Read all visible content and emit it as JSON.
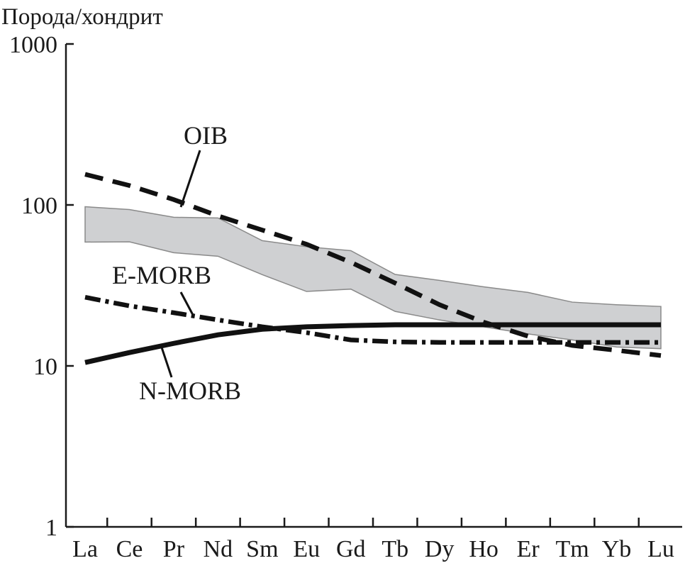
{
  "chart_data": {
    "type": "line",
    "ylabel": "Порода/хондрит",
    "yscale": "log",
    "ylim": [
      1,
      1000
    ],
    "yticks": [
      "1",
      "10",
      "100",
      "1000"
    ],
    "ytick_values": [
      1,
      10,
      100,
      1000
    ],
    "categories": [
      "La",
      "Ce",
      "Pr",
      "Nd",
      "Sm",
      "Eu",
      "Gd",
      "Tb",
      "Dy",
      "Ho",
      "Er",
      "Tm",
      "Yb",
      "Lu"
    ],
    "band": {
      "name": "range",
      "color": "#cfd0d2",
      "upper": [
        97.5,
        93.6,
        83.8,
        83,
        60,
        55,
        52,
        37,
        34,
        31,
        28.6,
        24.9,
        24,
        23.4
      ],
      "lower": [
        58.8,
        59,
        50.5,
        48,
        36.9,
        29,
        30,
        21.8,
        19.3,
        17.5,
        15.8,
        14.5,
        13.1,
        12.8
      ]
    },
    "series": [
      {
        "name": "OIB",
        "style": "dashed",
        "values": [
          155,
          132,
          108,
          85.5,
          69.8,
          57,
          44,
          32.7,
          24,
          18.7,
          15.3,
          13.4,
          12.5,
          11.6
        ]
      },
      {
        "name": "E-MORB",
        "style": "dash-dot",
        "values": [
          26.7,
          23.6,
          21.4,
          19.3,
          17.5,
          16.1,
          14.5,
          14.1,
          14,
          14,
          14,
          14,
          14,
          14
        ]
      },
      {
        "name": "N-MORB",
        "style": "solid",
        "values": [
          10.5,
          12.1,
          13.8,
          15.6,
          16.9,
          17.5,
          17.8,
          18,
          18,
          18,
          18,
          18,
          18,
          18
        ]
      }
    ]
  }
}
